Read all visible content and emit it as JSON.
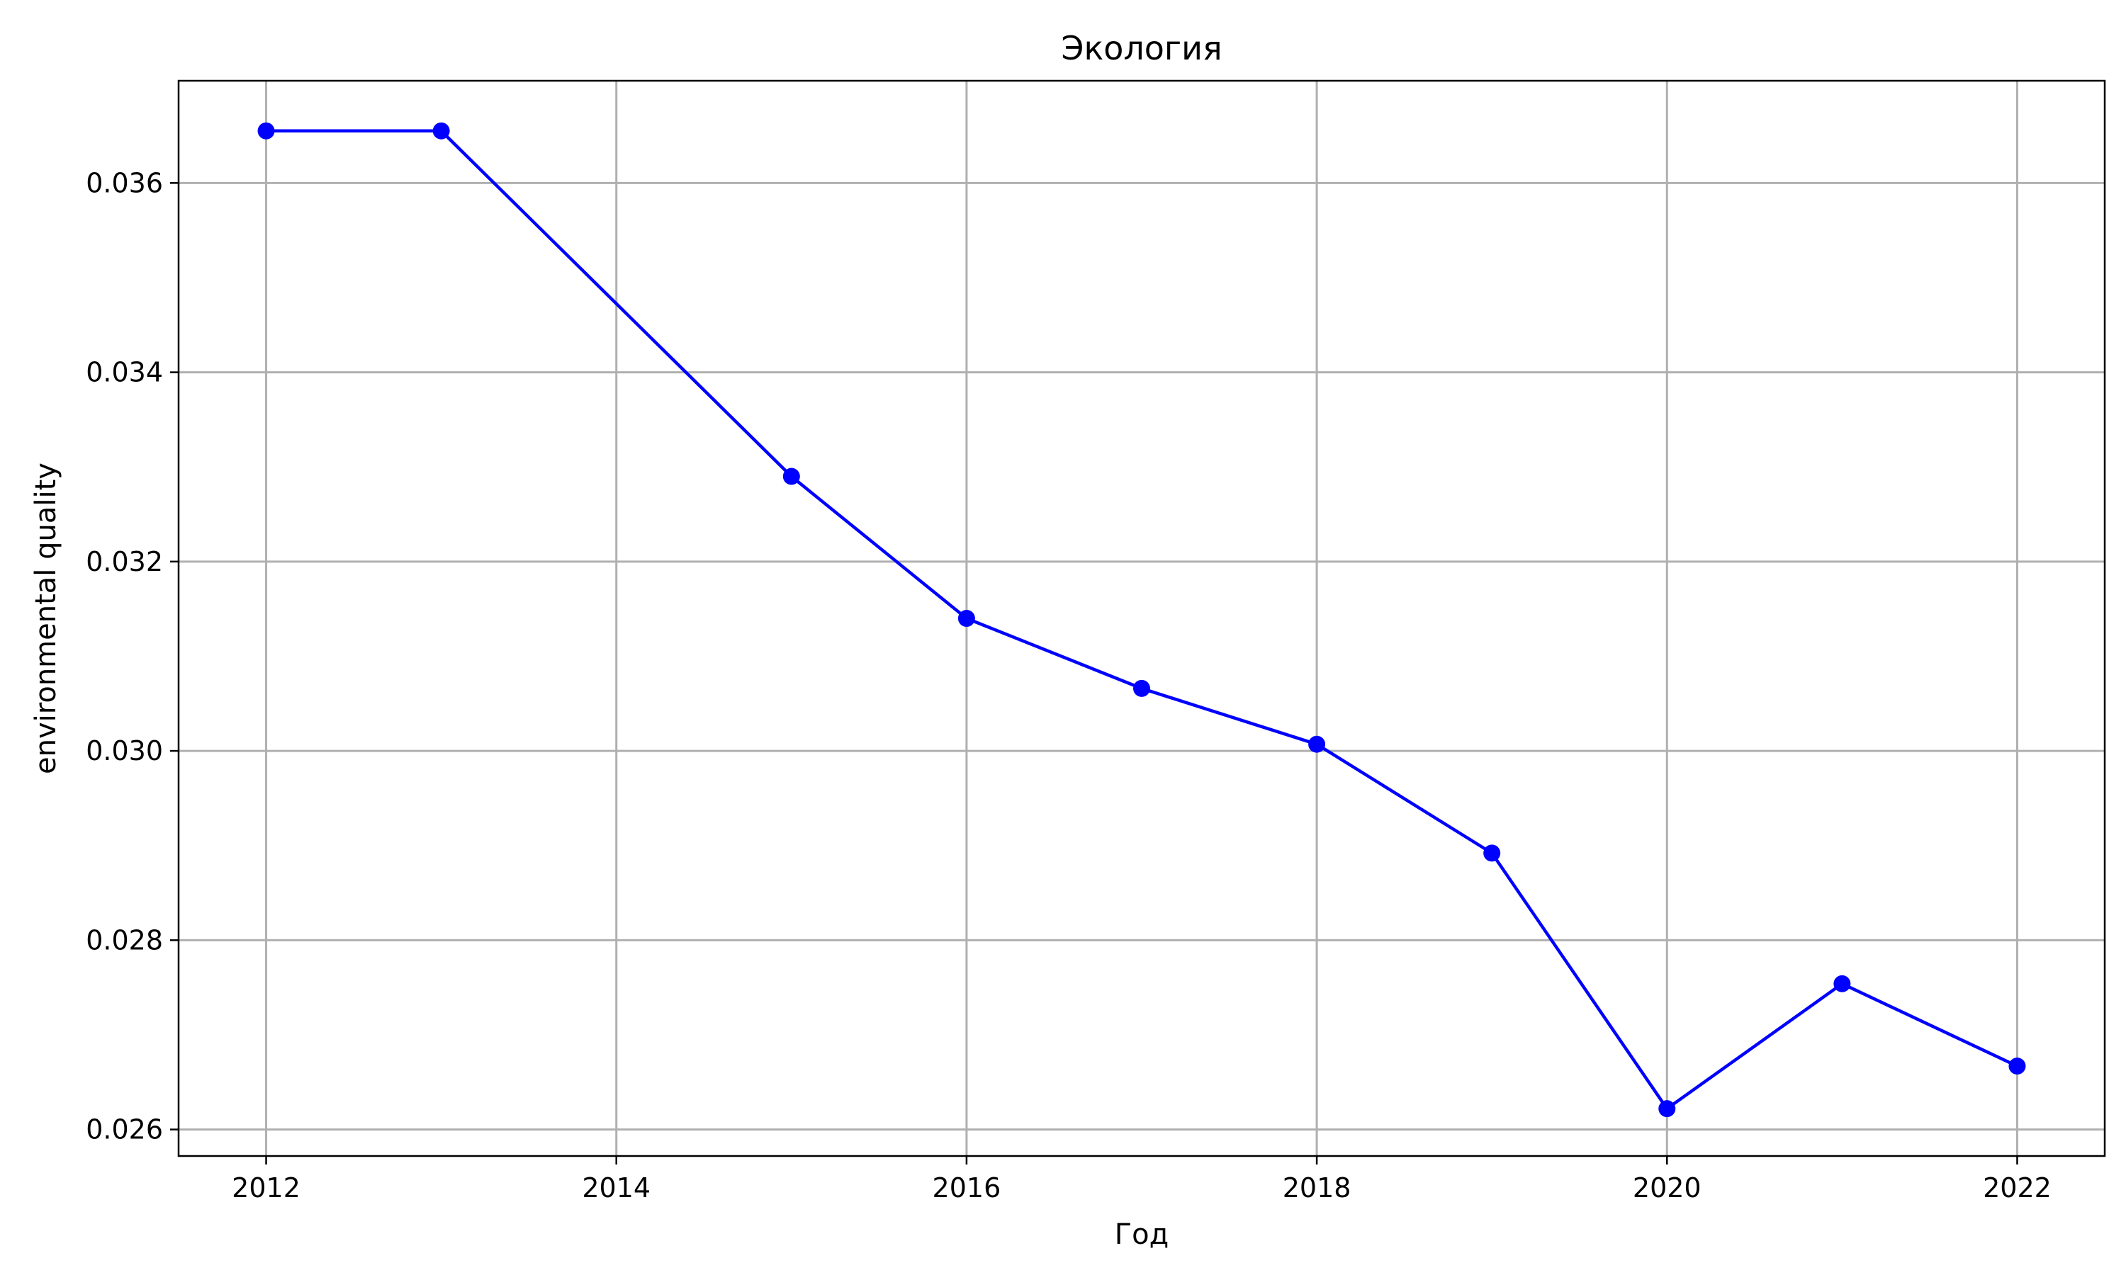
{
  "chart_data": {
    "type": "line",
    "title": "Экология",
    "xlabel": "Год",
    "ylabel": "environmental quality",
    "xlim": [
      2011.5,
      2022.5
    ],
    "ylim": [
      0.02572,
      0.03708
    ],
    "xticks": [
      2012,
      2014,
      2016,
      2018,
      2020,
      2022
    ],
    "xtick_labels": [
      "2012",
      "2014",
      "2016",
      "2018",
      "2020",
      "2022"
    ],
    "yticks": [
      0.026,
      0.028,
      0.03,
      0.032,
      0.034,
      0.036
    ],
    "ytick_labels": [
      "0.026",
      "0.028",
      "0.030",
      "0.032",
      "0.034",
      "0.036"
    ],
    "grid": true,
    "series": [
      {
        "color": "#0000ff",
        "marker": "circle",
        "x": [
          2012,
          2013,
          2015,
          2016,
          2017,
          2018,
          2019,
          2020,
          2021,
          2022
        ],
        "y": [
          0.03655,
          0.03655,
          0.0329,
          0.0314,
          0.03066,
          0.03007,
          0.02892,
          0.02622,
          0.02754,
          0.02667
        ]
      }
    ]
  }
}
